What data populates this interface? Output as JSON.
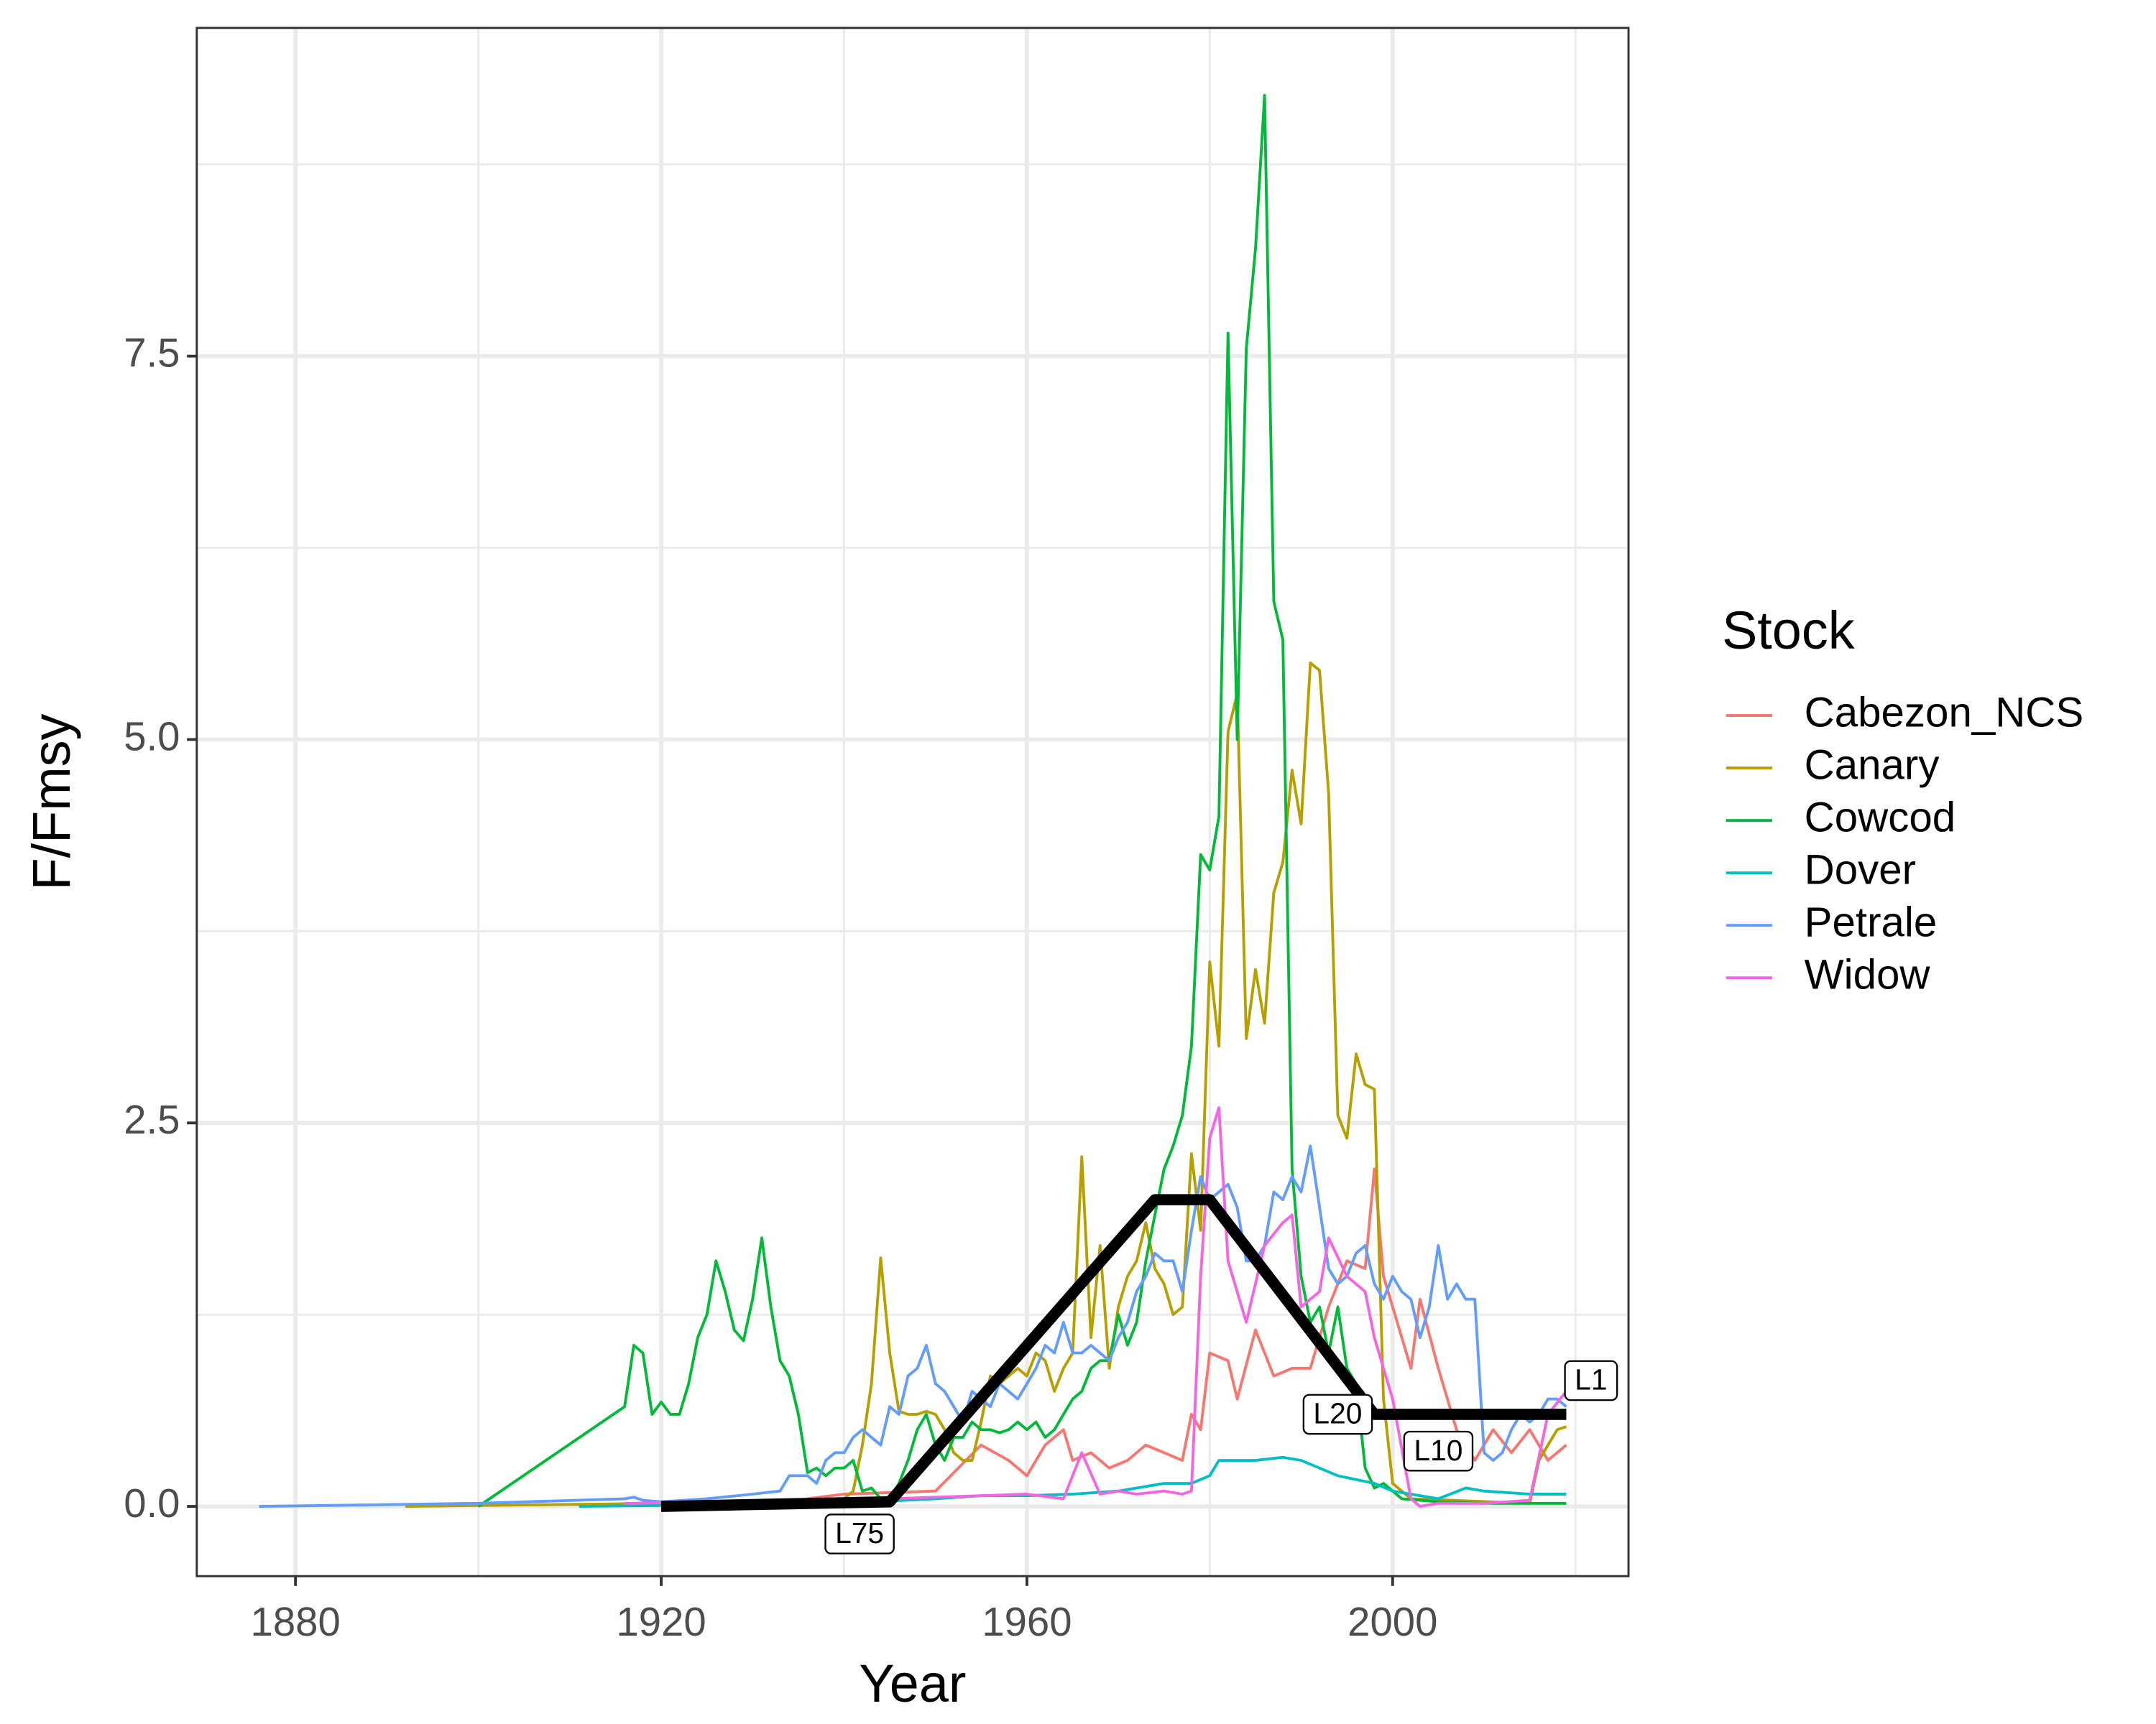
{
  "chart_data": {
    "type": "line",
    "x_label": "Year",
    "y_label": "F/Fmsy",
    "legend_title": "Stock",
    "legend_position": "right",
    "grid": true,
    "xlim": [
      1869.2,
      2025.8
    ],
    "ylim": [
      -0.455,
      9.64
    ],
    "xticks": [
      1880,
      1920,
      1960,
      2000
    ],
    "yticks": [
      {
        "value": 0,
        "label": "0.0"
      },
      2.5,
      {
        "value": 5,
        "label": "5.0"
      },
      7.5
    ],
    "series": [
      {
        "name": "Cabezon_NCS",
        "color": "#F8766D",
        "x": [
          1936,
          1940,
          1950,
          1955,
          1958,
          1960,
          1962,
          1964,
          1965,
          1967,
          1969,
          1971,
          1973,
          1975,
          1977,
          1978,
          1979,
          1980,
          1982,
          1983,
          1985,
          1987,
          1989,
          1991,
          1993,
          1995,
          1997,
          1998,
          1999,
          2000,
          2002,
          2003,
          2005,
          2007,
          2009,
          2011,
          2013,
          2015,
          2017,
          2019
        ],
        "values": [
          0.05,
          0.08,
          0.1,
          0.4,
          0.3,
          0.2,
          0.4,
          0.5,
          0.3,
          0.35,
          0.25,
          0.3,
          0.4,
          0.35,
          0.3,
          0.6,
          0.5,
          1.0,
          0.95,
          0.7,
          1.15,
          0.85,
          0.9,
          0.9,
          1.3,
          1.6,
          1.55,
          2.2,
          1.5,
          1.3,
          0.9,
          1.35,
          0.9,
          0.5,
          0.3,
          0.5,
          0.35,
          0.5,
          0.3,
          0.4
        ]
      },
      {
        "name": "Canary",
        "color": "#B79F00",
        "x": [
          1892,
          1920,
          1940,
          1941,
          1942,
          1943,
          1944,
          1945,
          1946,
          1947,
          1948,
          1949,
          1950,
          1951,
          1952,
          1953,
          1954,
          1955,
          1956,
          1957,
          1958,
          1959,
          1960,
          1961,
          1962,
          1963,
          1964,
          1965,
          1966,
          1967,
          1968,
          1969,
          1970,
          1971,
          1972,
          1973,
          1974,
          1975,
          1976,
          1977,
          1978,
          1979,
          1980,
          1981,
          1982,
          1983,
          1984,
          1985,
          1986,
          1987,
          1988,
          1989,
          1990,
          1991,
          1992,
          1993,
          1994,
          1995,
          1996,
          1997,
          1998,
          1999,
          2000,
          2001,
          2002,
          2015,
          2016,
          2017,
          2018,
          2019
        ],
        "values": [
          0,
          0.02,
          0.05,
          0.1,
          0.4,
          0.8,
          1.62,
          1.0,
          0.62,
          0.6,
          0.6,
          0.62,
          0.6,
          0.5,
          0.35,
          0.3,
          0.3,
          0.55,
          0.85,
          0.8,
          0.85,
          0.9,
          0.85,
          1.0,
          0.95,
          0.75,
          0.9,
          1.0,
          2.28,
          1.1,
          1.7,
          0.9,
          1.3,
          1.5,
          1.6,
          1.85,
          1.55,
          1.45,
          1.25,
          1.3,
          2.3,
          1.8,
          3.55,
          3.0,
          5.05,
          5.3,
          3.05,
          3.5,
          3.15,
          4.0,
          4.2,
          4.8,
          4.45,
          5.5,
          5.45,
          4.65,
          2.55,
          2.4,
          2.95,
          2.75,
          2.72,
          0.7,
          0.15,
          0.1,
          0.05,
          0.02,
          0.3,
          0.4,
          0.5,
          0.52
        ]
      },
      {
        "name": "Cowcod",
        "color": "#00BA38",
        "x": [
          1900,
          1916,
          1917,
          1918,
          1919,
          1920,
          1921,
          1922,
          1923,
          1924,
          1925,
          1926,
          1927,
          1928,
          1929,
          1930,
          1931,
          1932,
          1933,
          1934,
          1935,
          1936,
          1937,
          1938,
          1939,
          1940,
          1941,
          1942,
          1943,
          1944,
          1945,
          1946,
          1947,
          1948,
          1949,
          1950,
          1951,
          1952,
          1953,
          1954,
          1955,
          1956,
          1957,
          1958,
          1959,
          1960,
          1961,
          1962,
          1963,
          1964,
          1965,
          1966,
          1967,
          1968,
          1969,
          1970,
          1971,
          1972,
          1973,
          1974,
          1975,
          1976,
          1977,
          1978,
          1979,
          1980,
          1981,
          1982,
          1983,
          1984,
          1985,
          1986,
          1987,
          1988,
          1989,
          1990,
          1991,
          1992,
          1993,
          1994,
          1995,
          1996,
          1997,
          1998,
          1999,
          2000,
          2001,
          2005,
          2010,
          2019
        ],
        "values": [
          0,
          0.65,
          1.05,
          1.0,
          0.6,
          0.68,
          0.6,
          0.6,
          0.8,
          1.1,
          1.25,
          1.6,
          1.4,
          1.15,
          1.08,
          1.35,
          1.75,
          1.3,
          0.95,
          0.85,
          0.6,
          0.22,
          0.25,
          0.2,
          0.25,
          0.25,
          0.3,
          0.1,
          0.12,
          0.05,
          0.05,
          0.15,
          0.3,
          0.5,
          0.6,
          0.4,
          0.3,
          0.45,
          0.45,
          0.55,
          0.5,
          0.5,
          0.48,
          0.5,
          0.55,
          0.5,
          0.55,
          0.45,
          0.5,
          0.6,
          0.7,
          0.75,
          0.9,
          0.95,
          0.95,
          1.25,
          1.05,
          1.2,
          1.6,
          1.9,
          2.2,
          2.35,
          2.55,
          3.0,
          4.25,
          4.15,
          4.5,
          7.65,
          5.0,
          7.55,
          8.2,
          9.2,
          5.9,
          5.65,
          2.2,
          1.5,
          1.2,
          1.3,
          1.0,
          1.3,
          0.9,
          0.8,
          0.25,
          0.12,
          0.15,
          0.1,
          0.05,
          0.03,
          0.02,
          0.02
        ]
      },
      {
        "name": "Dover",
        "color": "#00BFC4",
        "x": [
          1911,
          1940,
          1950,
          1955,
          1960,
          1965,
          1970,
          1975,
          1978,
          1980,
          1981,
          1985,
          1988,
          1990,
          1994,
          1998,
          2000,
          2005,
          2008,
          2010,
          2015,
          2019
        ],
        "values": [
          0,
          0.02,
          0.05,
          0.07,
          0.07,
          0.08,
          0.1,
          0.15,
          0.15,
          0.2,
          0.3,
          0.3,
          0.32,
          0.3,
          0.2,
          0.15,
          0.1,
          0.05,
          0.12,
          0.1,
          0.08,
          0.08
        ]
      },
      {
        "name": "Petrale",
        "color": "#619CFF",
        "x": [
          1876,
          1900,
          1916,
          1917,
          1918,
          1920,
          1925,
          1930,
          1933,
          1934,
          1936,
          1937,
          1938,
          1939,
          1940,
          1941,
          1942,
          1943,
          1944,
          1945,
          1946,
          1947,
          1948,
          1949,
          1950,
          1951,
          1952,
          1953,
          1954,
          1955,
          1956,
          1957,
          1958,
          1959,
          1960,
          1961,
          1962,
          1963,
          1964,
          1965,
          1966,
          1967,
          1968,
          1969,
          1970,
          1971,
          1972,
          1973,
          1974,
          1975,
          1976,
          1977,
          1978,
          1979,
          1980,
          1981,
          1982,
          1983,
          1984,
          1985,
          1986,
          1987,
          1988,
          1989,
          1990,
          1991,
          1992,
          1993,
          1994,
          1995,
          1996,
          1997,
          1998,
          1999,
          2000,
          2001,
          2002,
          2003,
          2004,
          2005,
          2006,
          2007,
          2008,
          2009,
          2010,
          2011,
          2012,
          2013,
          2014,
          2015,
          2016,
          2017,
          2018,
          2019
        ],
        "values": [
          0,
          0.02,
          0.05,
          0.06,
          0.04,
          0.03,
          0.05,
          0.08,
          0.1,
          0.2,
          0.2,
          0.15,
          0.3,
          0.35,
          0.35,
          0.45,
          0.5,
          0.45,
          0.4,
          0.65,
          0.6,
          0.85,
          0.9,
          1.05,
          0.8,
          0.75,
          0.65,
          0.55,
          0.75,
          0.7,
          0.65,
          0.8,
          0.75,
          0.7,
          0.8,
          0.9,
          1.05,
          1.0,
          1.2,
          1.0,
          1.0,
          1.05,
          1.0,
          0.95,
          1.1,
          1.2,
          1.4,
          1.5,
          1.65,
          1.6,
          1.6,
          1.4,
          1.8,
          2.15,
          2.0,
          2.05,
          2.1,
          1.95,
          1.6,
          1.6,
          1.7,
          2.05,
          2.0,
          2.15,
          2.05,
          2.35,
          1.95,
          1.55,
          1.45,
          1.5,
          1.65,
          1.7,
          1.45,
          1.35,
          1.5,
          1.4,
          1.35,
          1.1,
          1.3,
          1.7,
          1.35,
          1.45,
          1.35,
          1.35,
          0.35,
          0.3,
          0.35,
          0.5,
          0.6,
          0.55,
          0.6,
          0.7,
          0.7,
          0.65
        ]
      },
      {
        "name": "Widow",
        "color": "#F564E3",
        "x": [
          1916,
          1940,
          1950,
          1960,
          1964,
          1966,
          1968,
          1970,
          1972,
          1975,
          1977,
          1978,
          1979,
          1980,
          1981,
          1982,
          1984,
          1986,
          1988,
          1989,
          1990,
          1992,
          1993,
          1995,
          1997,
          1998,
          2000,
          2002,
          2003,
          2005,
          2010,
          2015,
          2017,
          2019
        ],
        "values": [
          0.02,
          0.04,
          0.06,
          0.08,
          0.05,
          0.35,
          0.08,
          0.1,
          0.08,
          0.1,
          0.08,
          0.1,
          1.5,
          2.4,
          2.6,
          1.6,
          1.2,
          1.7,
          1.85,
          1.9,
          1.3,
          1.4,
          1.75,
          1.5,
          1.4,
          1.1,
          0.7,
          0.05,
          0,
          0.02,
          0.02,
          0.04,
          0.6,
          0.75
        ]
      }
    ],
    "milestone_line": {
      "color": "#000000",
      "x": [
        1920,
        1945,
        1974,
        1980,
        1998,
        2019
      ],
      "values": [
        0,
        0.03,
        2.0,
        2.0,
        0.6,
        0.6
      ]
    },
    "annotations": [
      {
        "label": "L75",
        "x": 1941.7,
        "y": -0.18
      },
      {
        "label": "L20",
        "x": 1994,
        "y": 0.6
      },
      {
        "label": "L10",
        "x": 2005,
        "y": 0.36
      },
      {
        "label": "L1",
        "x": 2021.7,
        "y": 0.82
      }
    ]
  }
}
